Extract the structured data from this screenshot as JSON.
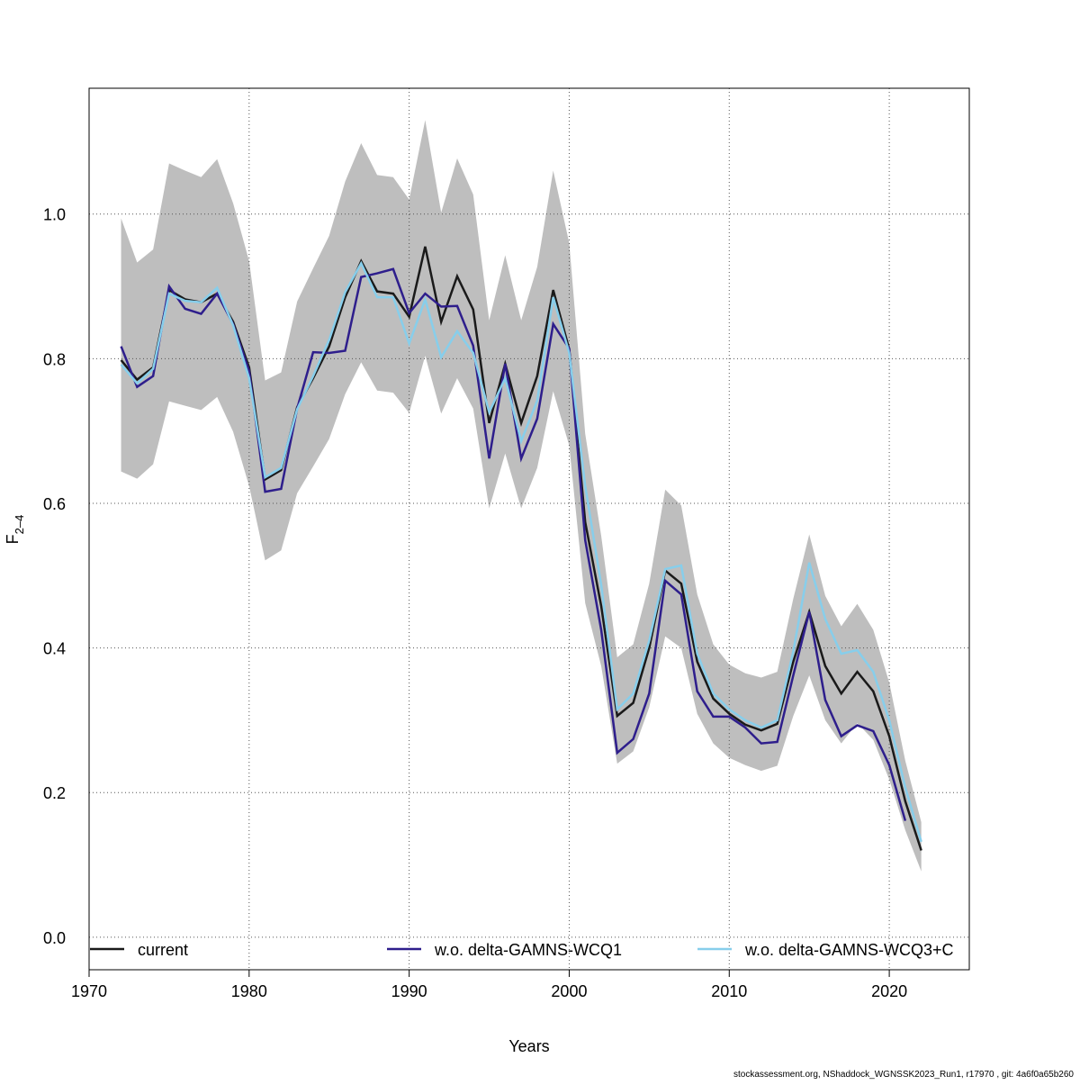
{
  "chart_data": {
    "type": "line",
    "x_label": "Years",
    "y_label": "F",
    "y_label_subscript": "2–4",
    "footer": "stockassessment.org, NShaddock_WGNSSK2023_Run1, r17970 , git: 4a6f0a65b260",
    "x": [
      1972,
      1973,
      1974,
      1975,
      1976,
      1977,
      1978,
      1979,
      1980,
      1981,
      1982,
      1983,
      1984,
      1985,
      1986,
      1987,
      1988,
      1989,
      1990,
      1991,
      1992,
      1993,
      1994,
      1995,
      1996,
      1997,
      1998,
      1999,
      2000,
      2001,
      2002,
      2003,
      2004,
      2005,
      2006,
      2007,
      2008,
      2009,
      2010,
      2011,
      2012,
      2013,
      2014,
      2015,
      2016,
      2017,
      2018,
      2019,
      2020,
      2021,
      2022
    ],
    "xlim": [
      1970,
      2025
    ],
    "ylim": [
      -0.045,
      1.174
    ],
    "xticks": [
      1970,
      1980,
      1990,
      2000,
      2010,
      2020
    ],
    "yticks": [
      {
        "value": 0,
        "label": "0.0"
      },
      {
        "value": 0.2,
        "label": "0.2"
      },
      {
        "value": 0.4,
        "label": "0.4"
      },
      {
        "value": 0.6,
        "label": "0.6"
      },
      {
        "value": 0.8,
        "label": "0.8"
      },
      {
        "value": 1,
        "label": "1.0"
      }
    ],
    "grid": true,
    "legend": "bottom",
    "band": {
      "color": "#bebebe",
      "upper": [
        0.994,
        0.933,
        0.951,
        1.07,
        1.06,
        1.051,
        1.076,
        1.015,
        0.935,
        0.77,
        0.781,
        0.879,
        0.925,
        0.97,
        1.045,
        1.098,
        1.054,
        1.051,
        1.02,
        1.13,
        1.002,
        1.077,
        1.027,
        0.853,
        0.943,
        0.853,
        0.927,
        1.06,
        0.96,
        0.696,
        0.555,
        0.387,
        0.405,
        0.489,
        0.619,
        0.597,
        0.474,
        0.405,
        0.377,
        0.365,
        0.359,
        0.367,
        0.468,
        0.557,
        0.472,
        0.43,
        0.461,
        0.425,
        0.352,
        0.244,
        0.159
      ],
      "lower": [
        0.644,
        0.634,
        0.654,
        0.741,
        0.735,
        0.729,
        0.747,
        0.699,
        0.624,
        0.521,
        0.535,
        0.614,
        0.651,
        0.689,
        0.751,
        0.795,
        0.756,
        0.753,
        0.725,
        0.804,
        0.724,
        0.773,
        0.731,
        0.593,
        0.669,
        0.593,
        0.649,
        0.755,
        0.68,
        0.462,
        0.375,
        0.24,
        0.257,
        0.318,
        0.416,
        0.4,
        0.309,
        0.268,
        0.248,
        0.238,
        0.23,
        0.237,
        0.306,
        0.362,
        0.3,
        0.268,
        0.296,
        0.273,
        0.218,
        0.148,
        0.091
      ]
    },
    "series": [
      {
        "name": "current",
        "color": "#1a1a1a",
        "values": [
          0.798,
          0.771,
          0.788,
          0.895,
          0.882,
          0.878,
          0.89,
          0.851,
          0.788,
          0.633,
          0.646,
          0.733,
          0.773,
          0.817,
          0.885,
          0.935,
          0.893,
          0.89,
          0.858,
          0.955,
          0.851,
          0.914,
          0.868,
          0.711,
          0.793,
          0.711,
          0.776,
          0.895,
          0.813,
          0.574,
          0.458,
          0.306,
          0.324,
          0.4,
          0.507,
          0.489,
          0.381,
          0.33,
          0.309,
          0.294,
          0.286,
          0.295,
          0.381,
          0.45,
          0.375,
          0.337,
          0.367,
          0.34,
          0.278,
          0.188,
          0.12
        ]
      },
      {
        "name": "w.o. delta-GAMNS-WCQ1",
        "color": "#2e1e8c",
        "values": [
          0.817,
          0.761,
          0.776,
          0.9,
          0.869,
          0.862,
          0.89,
          0.848,
          0.783,
          0.616,
          0.62,
          0.731,
          0.809,
          0.808,
          0.811,
          0.913,
          0.918,
          0.924,
          0.863,
          0.89,
          0.872,
          0.873,
          0.818,
          0.662,
          0.793,
          0.662,
          0.717,
          0.848,
          0.814,
          0.549,
          0.425,
          0.255,
          0.274,
          0.337,
          0.493,
          0.474,
          0.34,
          0.305,
          0.305,
          0.29,
          0.268,
          0.27,
          0.362,
          0.45,
          0.328,
          0.278,
          0.293,
          0.285,
          0.238,
          0.161,
          null
        ]
      },
      {
        "name": "w.o. delta-GAMNS-WCQ3+C",
        "color": "#87ceeb",
        "values": [
          0.792,
          0.766,
          0.786,
          0.89,
          0.88,
          0.878,
          0.898,
          0.846,
          0.773,
          0.636,
          0.649,
          0.73,
          0.776,
          0.826,
          0.892,
          0.932,
          0.885,
          0.885,
          0.821,
          0.882,
          0.802,
          0.838,
          0.808,
          0.726,
          0.773,
          0.686,
          0.742,
          0.885,
          0.808,
          0.624,
          0.487,
          0.315,
          0.337,
          0.41,
          0.509,
          0.514,
          0.392,
          0.337,
          0.315,
          0.3,
          0.29,
          0.3,
          0.395,
          0.518,
          0.44,
          0.392,
          0.397,
          0.367,
          0.3,
          0.207,
          0.132
        ]
      }
    ]
  }
}
